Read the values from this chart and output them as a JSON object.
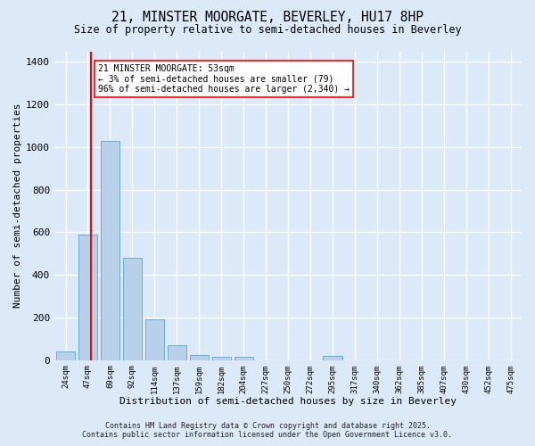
{
  "title_line1": "21, MINSTER MOORGATE, BEVERLEY, HU17 8HP",
  "title_line2": "Size of property relative to semi-detached houses in Beverley",
  "xlabel": "Distribution of semi-detached houses by size in Beverley",
  "ylabel": "Number of semi-detached properties",
  "bar_color": "#b8d0ea",
  "bar_edge_color": "#6aaed6",
  "background_color": "#dce9f8",
  "grid_color": "#ffffff",
  "bin_labels": [
    "24sqm",
    "47sqm",
    "69sqm",
    "92sqm",
    "114sqm",
    "137sqm",
    "159sqm",
    "182sqm",
    "204sqm",
    "227sqm",
    "250sqm",
    "272sqm",
    "295sqm",
    "317sqm",
    "340sqm",
    "362sqm",
    "385sqm",
    "407sqm",
    "430sqm",
    "452sqm",
    "475sqm"
  ],
  "bar_values": [
    40,
    590,
    1030,
    480,
    190,
    70,
    25,
    15,
    15,
    0,
    0,
    0,
    20,
    0,
    0,
    0,
    0,
    0,
    0,
    0,
    0
  ],
  "property_line_x": 1.15,
  "annotation_text": "21 MINSTER MOORGATE: 53sqm\n← 3% of semi-detached houses are smaller (79)\n96% of semi-detached houses are larger (2,340) →",
  "ylim": [
    0,
    1450
  ],
  "yticks": [
    0,
    200,
    400,
    600,
    800,
    1000,
    1200,
    1400
  ],
  "footer_line1": "Contains HM Land Registry data © Crown copyright and database right 2025.",
  "footer_line2": "Contains public sector information licensed under the Open Government Licence v3.0."
}
